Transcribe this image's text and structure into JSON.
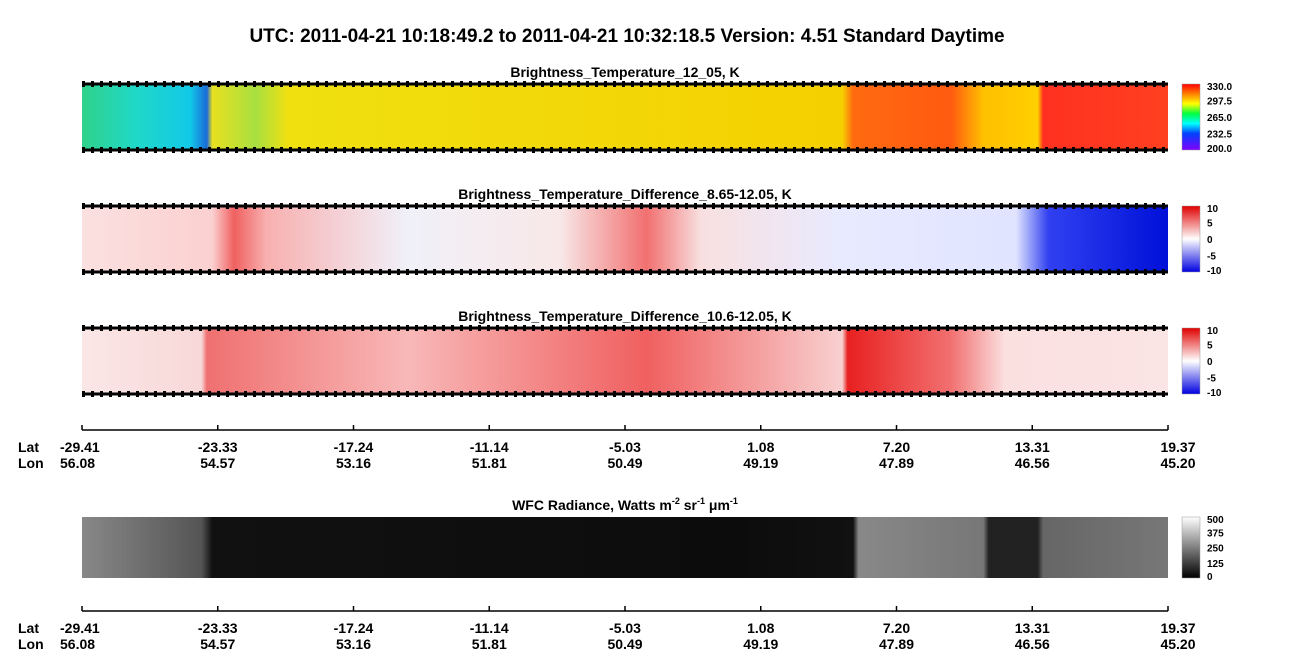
{
  "title": "UTC:  2011-04-21   10:18:49.2  to  2011-04-21   10:32:18.5    Version: 4.51  Standard Daytime",
  "panels": [
    {
      "title_parts": [
        "Brightness_Temperature_12_05, K"
      ],
      "colorbar_labels": [
        "330.0",
        "297.5",
        "265.0",
        "232.5",
        "200.0"
      ],
      "palette": "rainbow"
    },
    {
      "title_parts": [
        "Brightness_Temperature_Difference_8.65-12.05, K"
      ],
      "colorbar_labels": [
        "10",
        "5",
        "0",
        "-5",
        "-10"
      ],
      "palette": "diff1"
    },
    {
      "title_parts": [
        "Brightness_Temperature_Difference_10.6-12.05, K"
      ],
      "colorbar_labels": [
        "10",
        "5",
        "0",
        "-5",
        "-10"
      ],
      "palette": "diff2"
    },
    {
      "title_parts": [
        "WFC Radiance, Watts m",
        "-2",
        " sr",
        "-1",
        " μm",
        "-1"
      ],
      "colorbar_labels": [
        "500",
        "375",
        "250",
        "125",
        "0"
      ],
      "palette": "gray"
    }
  ],
  "axes": [
    {
      "lat_label": "Lat",
      "lon_label": "Lon",
      "lat": [
        "-29.41",
        "-23.33",
        "-17.24",
        "-11.14",
        "-5.03",
        "1.08",
        "7.20",
        "13.31",
        "19.37"
      ],
      "lon": [
        "56.08",
        "54.57",
        "53.16",
        "51.81",
        "50.49",
        "49.19",
        "47.89",
        "46.56",
        "45.20"
      ]
    }
  ]
}
